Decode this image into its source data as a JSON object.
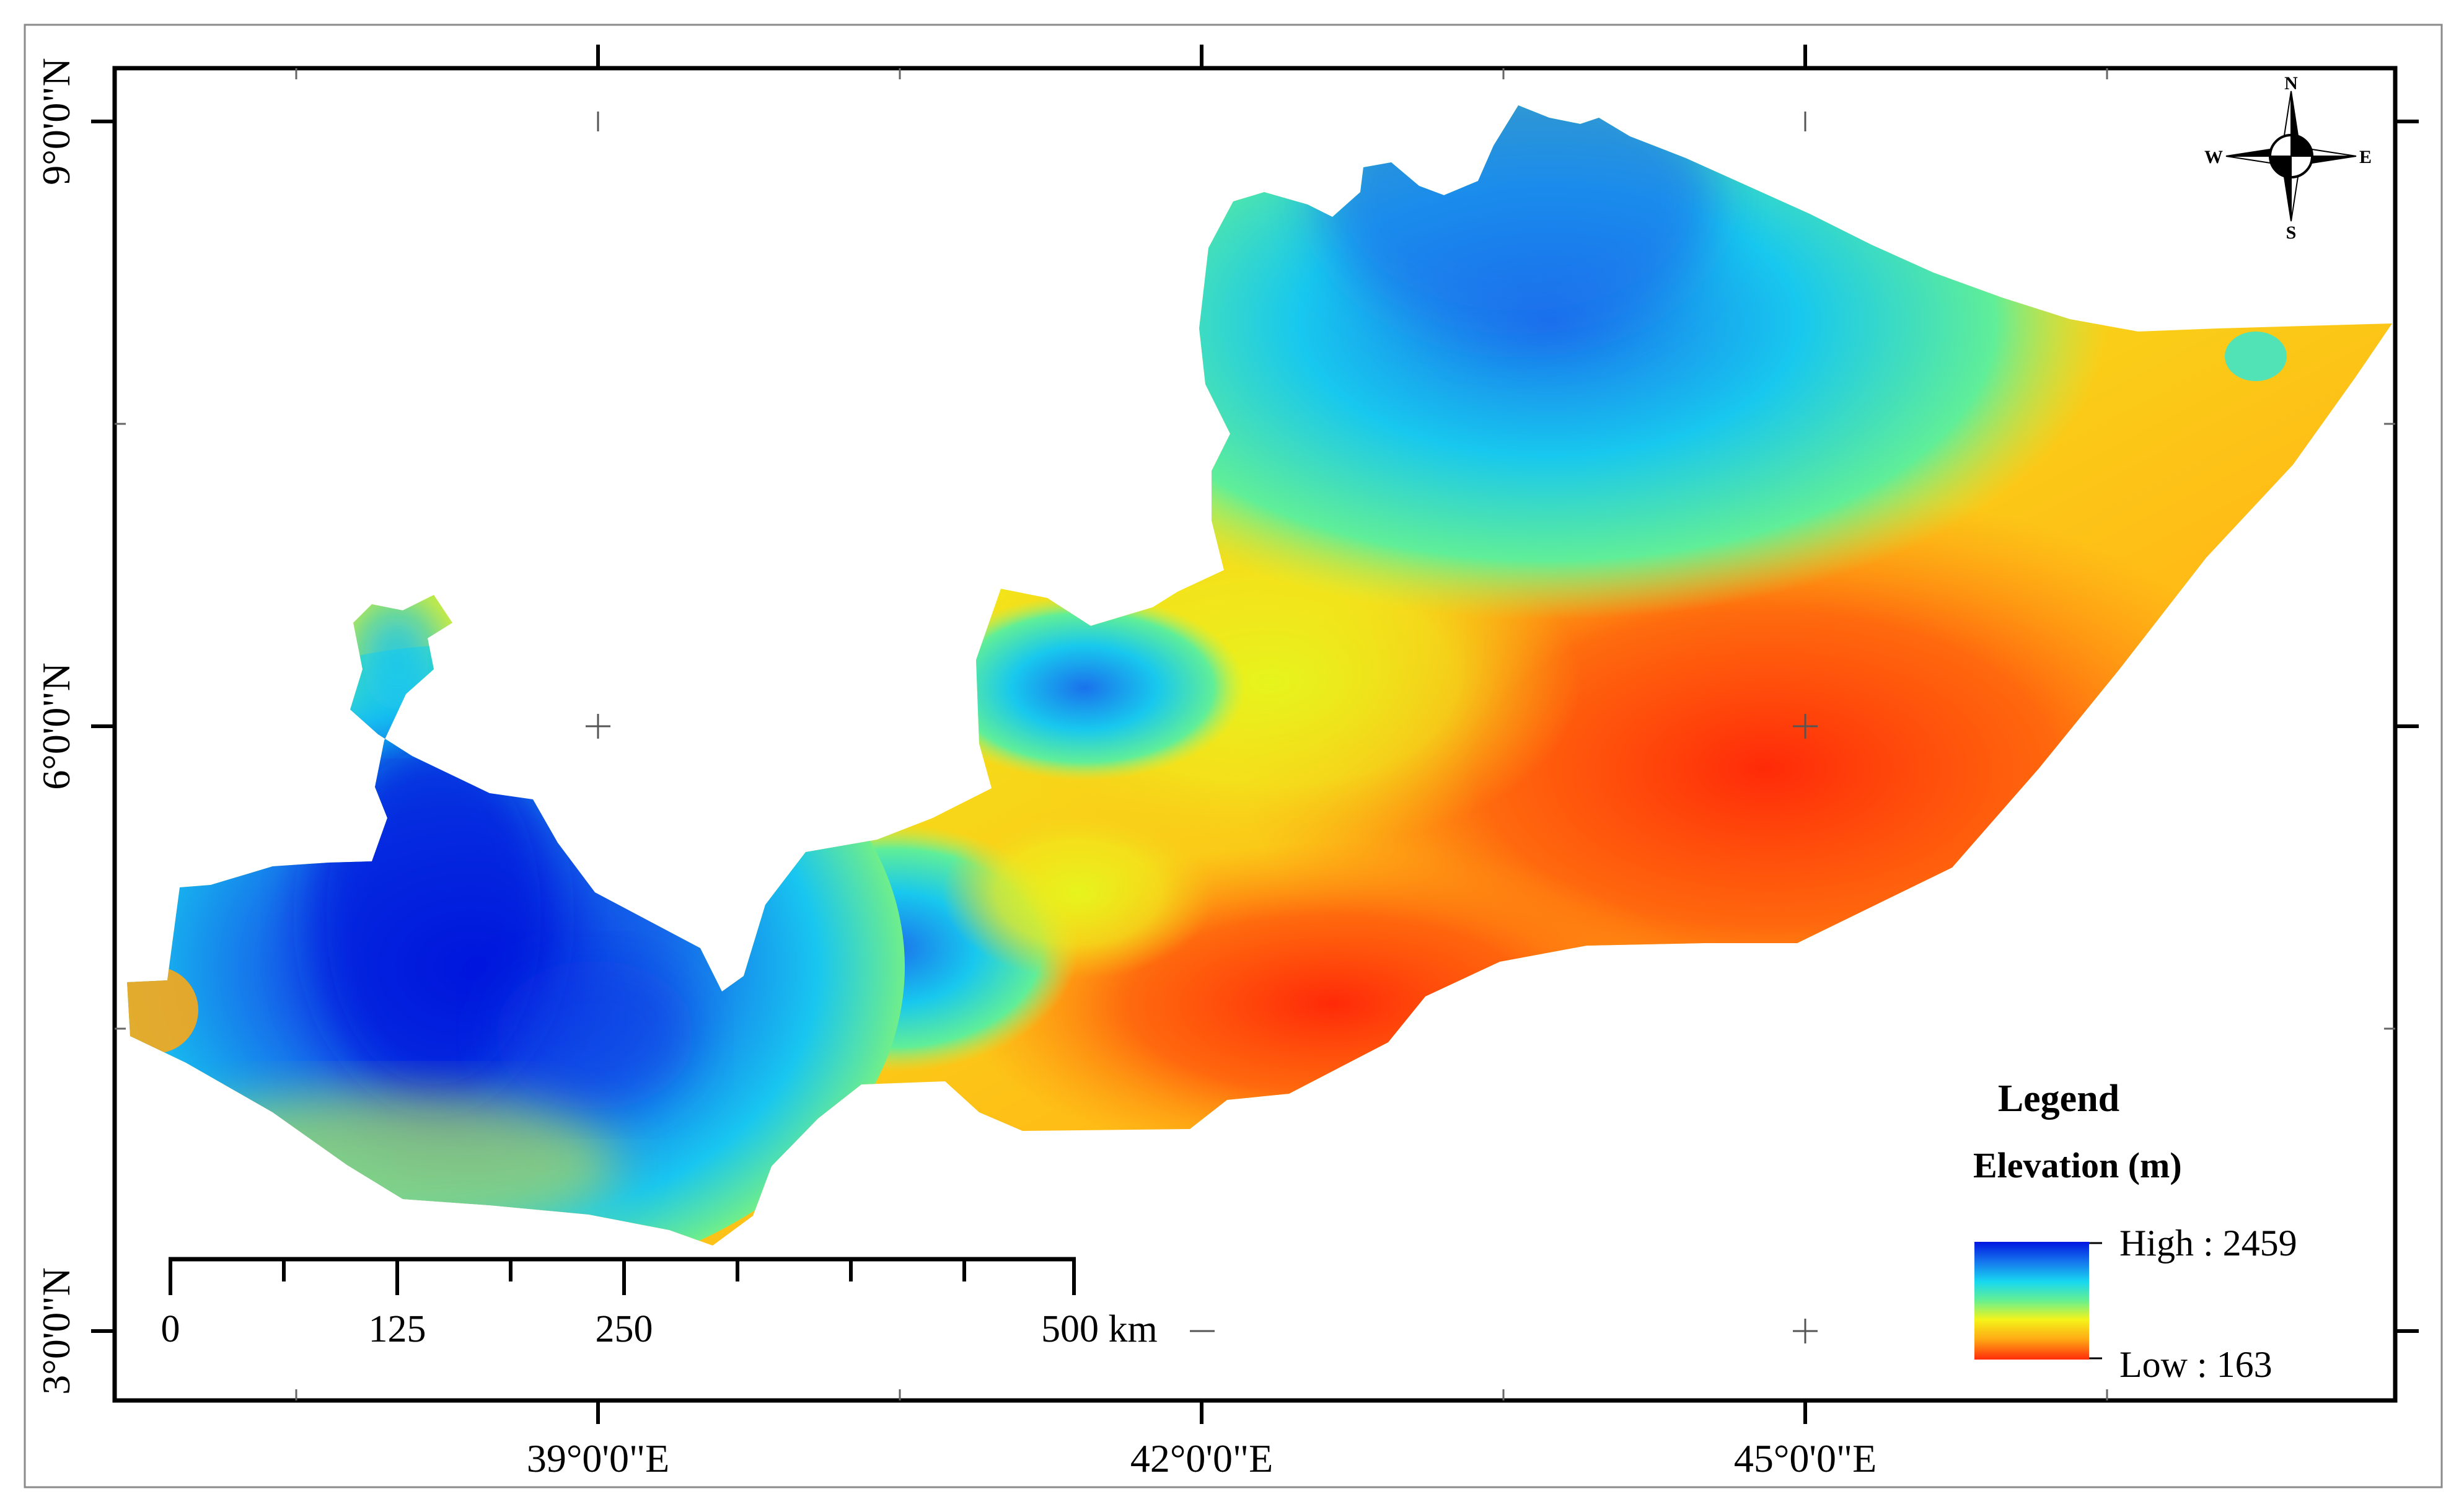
{
  "map": {
    "latitude_labels": [
      {
        "text": "9°0'0\"N",
        "lat": 9
      },
      {
        "text": "6°0'0\"N",
        "lat": 6
      },
      {
        "text": "3°0'0\"N",
        "lat": 3
      }
    ],
    "longitude_labels": [
      {
        "text": "39°0'0\"E",
        "lon": 39
      },
      {
        "text": "42°0'0\"E",
        "lon": 42
      },
      {
        "text": "45°0'0\"E",
        "lon": 45
      }
    ],
    "north_arrow": {
      "n": "N",
      "s": "S",
      "e": "E",
      "w": "W"
    }
  },
  "legend": {
    "title": "Legend",
    "subtitle": "Elevation (m)",
    "high_label": "High : 2459",
    "low_label": "Low : 163",
    "colors": [
      "#0016e0",
      "#1577ee",
      "#18d8f0",
      "#66f090",
      "#f4f41a",
      "#ffa814",
      "#ff2c0a"
    ]
  },
  "scale_bar": {
    "labels": [
      "0",
      "125",
      "250",
      "500 km"
    ]
  }
}
